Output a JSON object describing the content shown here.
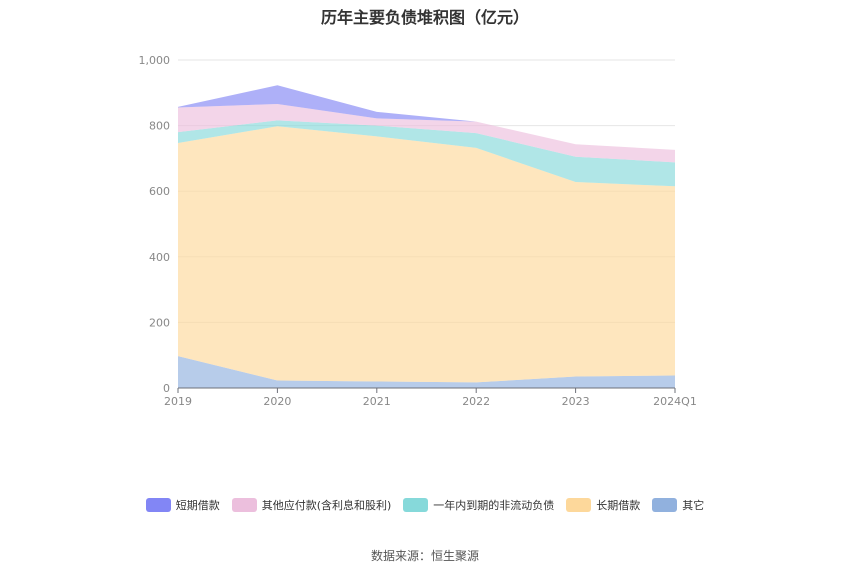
{
  "chart_data": {
    "type": "area",
    "stacked": true,
    "title": "历年主要负债堆积图（亿元）",
    "categories": [
      "2019",
      "2020",
      "2021",
      "2022",
      "2023",
      "2024Q1"
    ],
    "ylim": [
      0,
      1000
    ],
    "yticks": [
      "0",
      "200",
      "400",
      "600",
      "800",
      "1,000"
    ],
    "grid": true,
    "legend_position": "bottom",
    "series": [
      {
        "name": "其它",
        "color": "#91b1de",
        "values": [
          97,
          23,
          20,
          17,
          35,
          38
        ]
      },
      {
        "name": "长期借款",
        "color": "#fdd89b",
        "values": [
          650,
          775,
          747,
          715,
          593,
          577
        ]
      },
      {
        "name": "一年内到期的非流动负债",
        "color": "#86d9da",
        "values": [
          33,
          18,
          33,
          45,
          77,
          73
        ]
      },
      {
        "name": "其他应付款(含利息和股利)",
        "color": "#ecbfdd",
        "values": [
          75,
          50,
          22,
          35,
          38,
          38
        ]
      },
      {
        "name": "短期借款",
        "color": "#8286f5",
        "values": [
          2,
          57,
          20,
          0,
          0,
          0
        ]
      }
    ],
    "legend_order": [
      "短期借款",
      "其他应付款(含利息和股利)",
      "一年内到期的非流动负债",
      "长期借款",
      "其它"
    ]
  },
  "source": "数据来源：恒生聚源"
}
